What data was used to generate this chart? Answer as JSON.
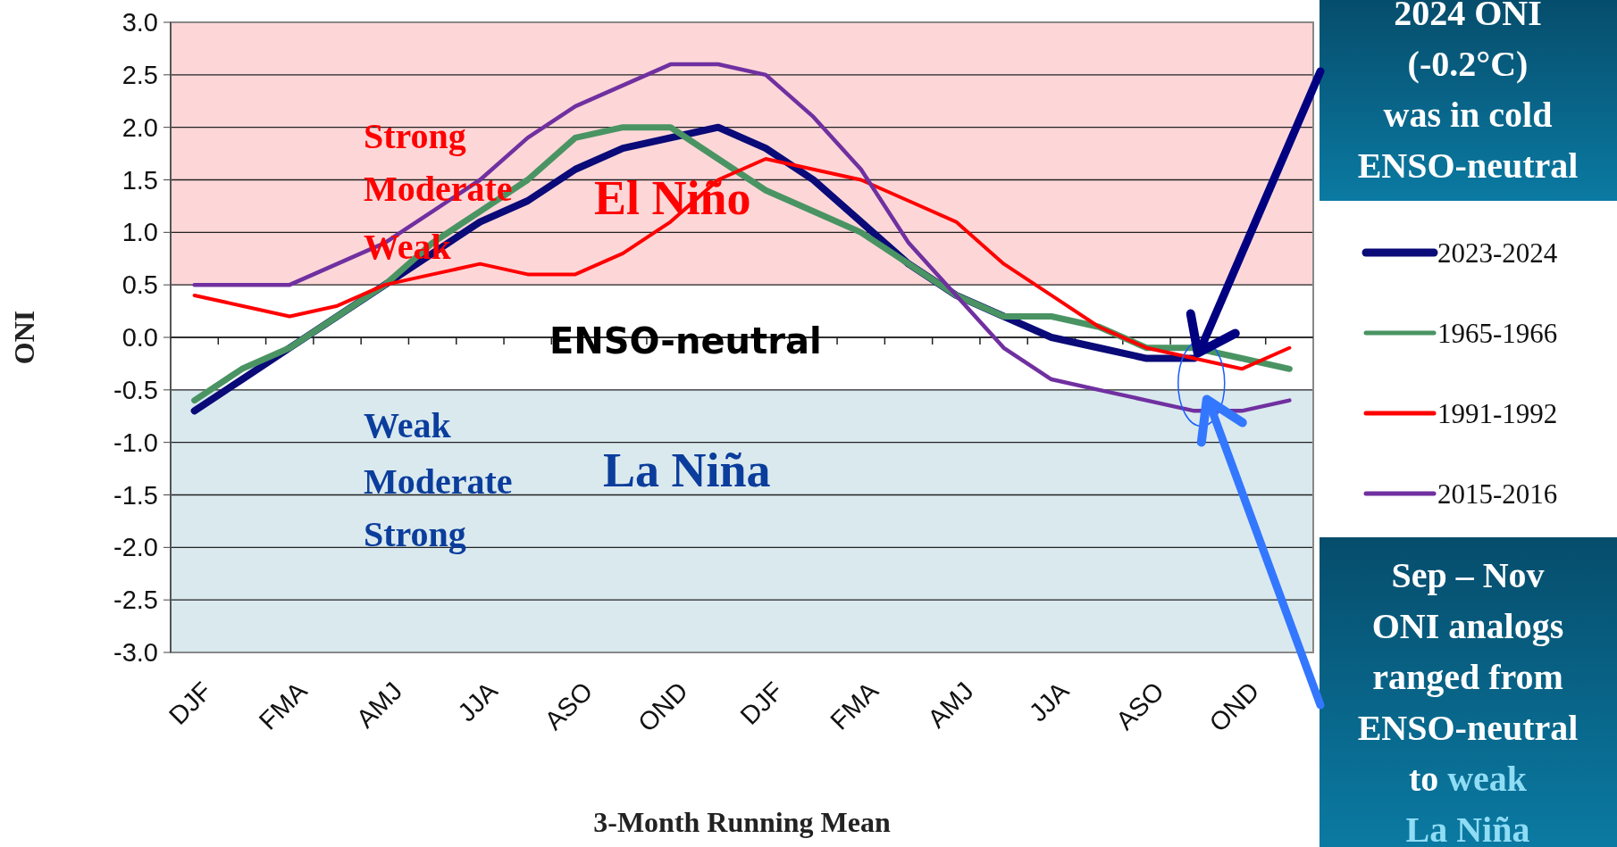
{
  "chart_data": {
    "type": "line",
    "xlabel": "3-Month Running Mean",
    "ylabel": "ONI",
    "categories": [
      "DJF",
      null,
      "FMA",
      null,
      "AMJ",
      null,
      "JJA",
      null,
      "ASO",
      null,
      "OND",
      null,
      "DJF",
      null,
      "FMA",
      null,
      "AMJ",
      null,
      "JJA",
      null,
      "ASO",
      null,
      "OND",
      null
    ],
    "series": [
      {
        "name": "2023-2024",
        "color": "#0a0a78",
        "values": [
          -0.7,
          -0.4,
          -0.1,
          0.2,
          0.5,
          0.8,
          1.1,
          1.3,
          1.6,
          1.8,
          1.9,
          2.0,
          1.8,
          1.5,
          1.1,
          0.7,
          0.4,
          0.2,
          0.0,
          -0.1,
          -0.2,
          -0.2,
          null,
          null
        ]
      },
      {
        "name": "1965-1966",
        "color": "#4a9463",
        "values": [
          -0.6,
          -0.3,
          -0.1,
          0.2,
          0.5,
          0.9,
          1.2,
          1.5,
          1.9,
          2.0,
          2.0,
          1.7,
          1.4,
          1.2,
          1.0,
          0.7,
          0.4,
          0.2,
          0.2,
          0.1,
          -0.1,
          -0.1,
          -0.2,
          -0.3
        ]
      },
      {
        "name": "1991-1992",
        "color": "#ff0000",
        "values": [
          0.4,
          0.3,
          0.2,
          0.3,
          0.5,
          0.6,
          0.7,
          0.6,
          0.6,
          0.8,
          1.1,
          1.5,
          1.7,
          1.6,
          1.5,
          1.3,
          1.1,
          0.7,
          0.4,
          0.1,
          -0.1,
          -0.2,
          -0.3,
          -0.1
        ]
      },
      {
        "name": "2015-2016",
        "color": "#7030a0",
        "values": [
          0.5,
          0.5,
          0.5,
          0.7,
          0.9,
          1.2,
          1.5,
          1.9,
          2.2,
          2.4,
          2.6,
          2.6,
          2.5,
          2.1,
          1.6,
          0.9,
          0.4,
          -0.1,
          -0.4,
          -0.5,
          -0.6,
          -0.7,
          -0.7,
          -0.6
        ]
      }
    ],
    "ylim": [
      -3.0,
      3.0
    ],
    "yticks": [
      {
        "value": 3,
        "label": "3.0"
      },
      {
        "value": 2.5,
        "label": "2.5"
      },
      {
        "value": 2,
        "label": "2.0"
      },
      {
        "value": 1.5,
        "label": "1.5"
      },
      {
        "value": 1,
        "label": "1.0"
      },
      {
        "value": 0.5,
        "label": "0.5"
      },
      {
        "value": 0,
        "label": "0.0"
      },
      {
        "value": -0.5,
        "label": "-0.5"
      },
      {
        "value": -1,
        "label": "-1.0"
      },
      {
        "value": -1.5,
        "label": "-1.5"
      },
      {
        "value": -2,
        "label": "-2.0"
      },
      {
        "value": -2.5,
        "label": "-2.5"
      },
      {
        "value": -3,
        "label": "-3.0"
      }
    ],
    "grid": "y",
    "legend": "right",
    "bands": [
      {
        "axis": "y",
        "from": 0.5,
        "to": 3.0,
        "color": "#fdd7d8"
      },
      {
        "axis": "y",
        "from": -3.0,
        "to": -0.5,
        "color": "#d9e9ee"
      }
    ],
    "annotations": [
      "Strong",
      "Moderate",
      "Weak",
      "El Niño",
      "ENSO-neutral",
      "Weak",
      "Moderate",
      "Strong",
      "La Niña",
      "2024 ONI\n(-0.2°C)\nwas in cold\nENSO-neutral",
      "Sep – Nov\nONI analogs\nranged from\nENSO-neutral\nto weak\nLa Niña"
    ]
  }
}
